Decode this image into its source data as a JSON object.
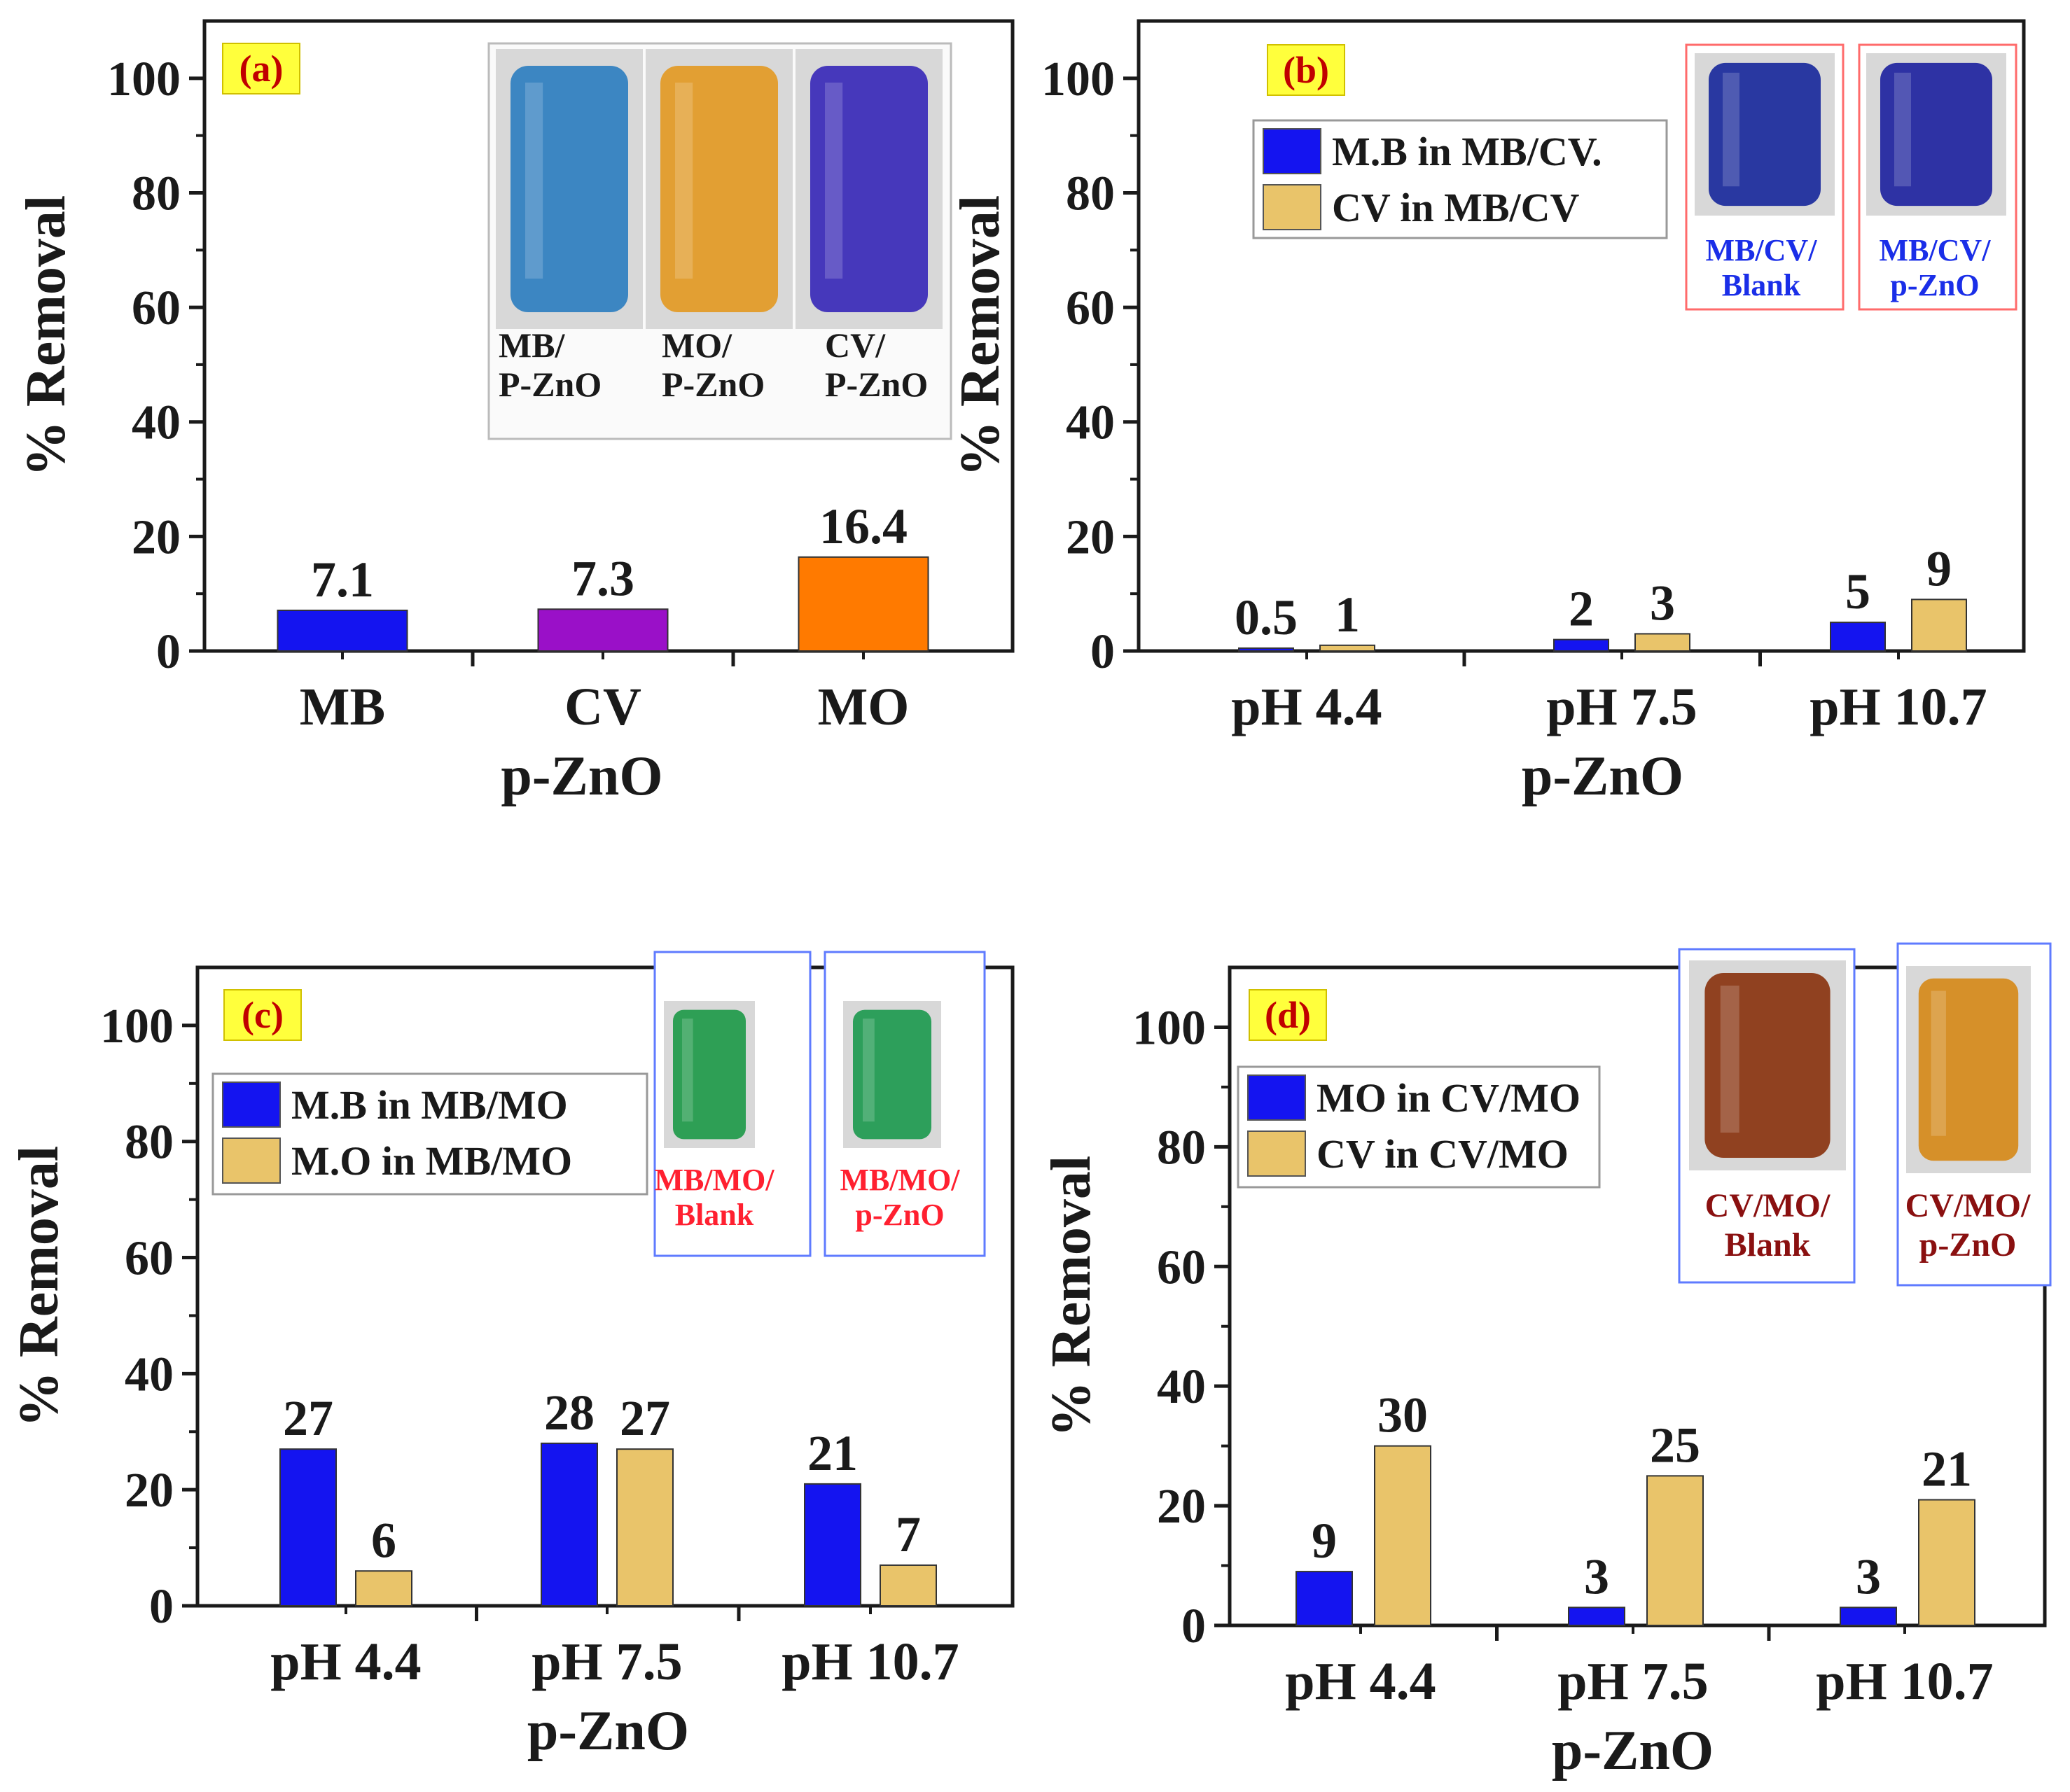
{
  "chart_data": [
    {
      "type": "bar",
      "panel_label": "(a)",
      "categories": [
        "MB",
        "CV",
        "MO"
      ],
      "series": [
        {
          "name": "% Removal",
          "values": [
            7.1,
            7.3,
            16.4
          ],
          "colors": [
            "#1414f0",
            "#9a10c8",
            "#ff7a00"
          ]
        }
      ],
      "data_labels": [
        "7.1",
        "7.3",
        "16.4"
      ],
      "xlabel": "p-ZnO",
      "ylabel": "% Removal",
      "ylim": [
        0,
        110
      ],
      "yticks": [
        "0",
        "20",
        "40",
        "60",
        "80",
        "100"
      ],
      "inset": {
        "photos": [
          {
            "name": "MB vial",
            "color": "#2f7fc0"
          },
          {
            "name": "MO vial",
            "color": "#e39a25"
          },
          {
            "name": "CV vial",
            "color": "#3a2ab8"
          }
        ],
        "captions": [
          [
            "MB/",
            "P-ZnO"
          ],
          [
            "MO/",
            "P-ZnO"
          ],
          [
            "CV/",
            "P-ZnO"
          ]
        ]
      }
    },
    {
      "type": "bar",
      "panel_label": "(b)",
      "categories": [
        "pH 4.4",
        "pH 7.5",
        "pH 10.7"
      ],
      "series": [
        {
          "name": "M.B in MB/CV.",
          "values": [
            0.5,
            2,
            5
          ],
          "labels": [
            "0.5",
            "2",
            "5"
          ],
          "color": "#1414f0"
        },
        {
          "name": "CV in MB/CV",
          "values": [
            1,
            3,
            9
          ],
          "labels": [
            "1",
            "3",
            "9"
          ],
          "color": "#e9c46a"
        }
      ],
      "xlabel": "p-ZnO",
      "ylabel": "% Removal",
      "ylim": [
        0,
        110
      ],
      "yticks": [
        "0",
        "20",
        "40",
        "60",
        "80",
        "100"
      ],
      "legend": "top-left",
      "inset": {
        "photos": [
          {
            "name": "MB/CV blank vial",
            "color": "#1a2a9c"
          },
          {
            "name": "MB/CV p-ZnO vial",
            "color": "#1f24a0"
          }
        ],
        "captions": [
          [
            "MB/CV/",
            "Blank"
          ],
          [
            "MB/CV/",
            "p-ZnO"
          ]
        ]
      }
    },
    {
      "type": "bar",
      "panel_label": "(c)",
      "categories": [
        "pH 4.4",
        "pH 7.5",
        "pH 10.7"
      ],
      "series": [
        {
          "name": "M.B in MB/MO",
          "values": [
            27,
            28,
            21
          ],
          "labels": [
            "27",
            "28",
            "21"
          ],
          "color": "#1414f0"
        },
        {
          "name": "M.O in MB/MO",
          "values": [
            6,
            27,
            7
          ],
          "labels": [
            "6",
            "27",
            "7"
          ],
          "color": "#e9c46a"
        }
      ],
      "xlabel": "p-ZnO",
      "ylabel": "% Removal",
      "ylim": [
        0,
        110
      ],
      "yticks": [
        "0",
        "20",
        "40",
        "60",
        "80",
        "100"
      ],
      "legend": "top-left",
      "inset": {
        "photos": [
          {
            "name": "MB/MO blank vial",
            "color": "#1f9a4a"
          },
          {
            "name": "MB/MO p-ZnO vial",
            "color": "#1e9a50"
          }
        ],
        "captions": [
          [
            "MB/MO/",
            "Blank"
          ],
          [
            "MB/MO/",
            "p-ZnO"
          ]
        ]
      }
    },
    {
      "type": "bar",
      "panel_label": "(d)",
      "categories": [
        "pH 4.4",
        "pH 7.5",
        "pH 10.7"
      ],
      "series": [
        {
          "name": "MO in CV/MO",
          "values": [
            9,
            3,
            3
          ],
          "labels": [
            "9",
            "3",
            "3"
          ],
          "color": "#1414f0"
        },
        {
          "name": "CV in CV/MO",
          "values": [
            30,
            25,
            21
          ],
          "labels": [
            "30",
            "25",
            "21"
          ],
          "color": "#e9c46a"
        }
      ],
      "xlabel": "p-ZnO",
      "ylabel": "% Removal",
      "ylim": [
        0,
        110
      ],
      "yticks": [
        "0",
        "20",
        "40",
        "60",
        "80",
        "100"
      ],
      "legend": "top-left",
      "inset": {
        "photos": [
          {
            "name": "CV/MO blank vial",
            "color": "#8a3410"
          },
          {
            "name": "CV/MO p-ZnO vial",
            "color": "#d68a1a"
          }
        ],
        "captions": [
          [
            "CV/MO/",
            "Blank"
          ],
          [
            "CV/MO/",
            "p-ZnO"
          ]
        ]
      }
    }
  ]
}
